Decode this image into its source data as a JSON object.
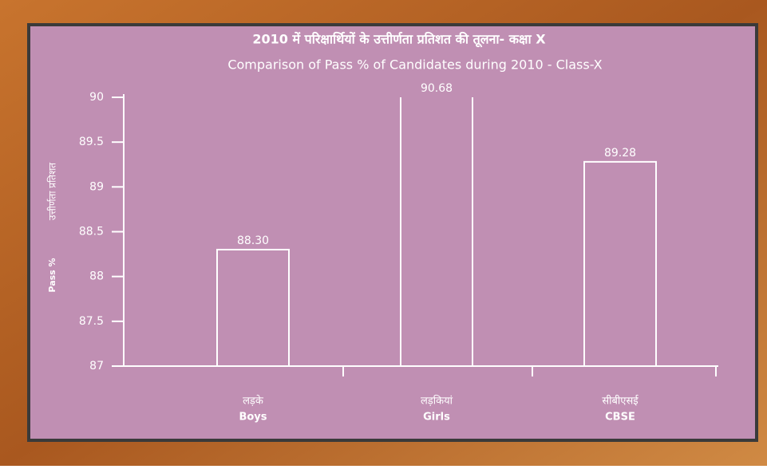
{
  "chart_data": {
    "type": "bar",
    "title": "2010 में परिक्षार्थियों के उत्तीर्णता प्रतिशत की तूलना- कक्षा X",
    "subtitle": "Comparison of Pass % of Candidates during 2010 - Class-X",
    "y_label": "Pass %",
    "y_label_hindi": "उत्तीर्णता प्रतिशत",
    "categories_hindi": [
      "लड़के",
      "लड़कियां",
      "सीबीएसई"
    ],
    "categories": [
      "Boys",
      "Girls",
      "CBSE"
    ],
    "values": [
      88.3,
      90.68,
      89.28
    ],
    "value_labels": [
      "88.30",
      "90.68",
      "89.28"
    ],
    "color": "#ffffff",
    "ylim": [
      87,
      90
    ],
    "yticks": [
      87,
      87.5,
      88,
      88.5,
      89,
      89.5,
      90
    ],
    "grid": false
  }
}
